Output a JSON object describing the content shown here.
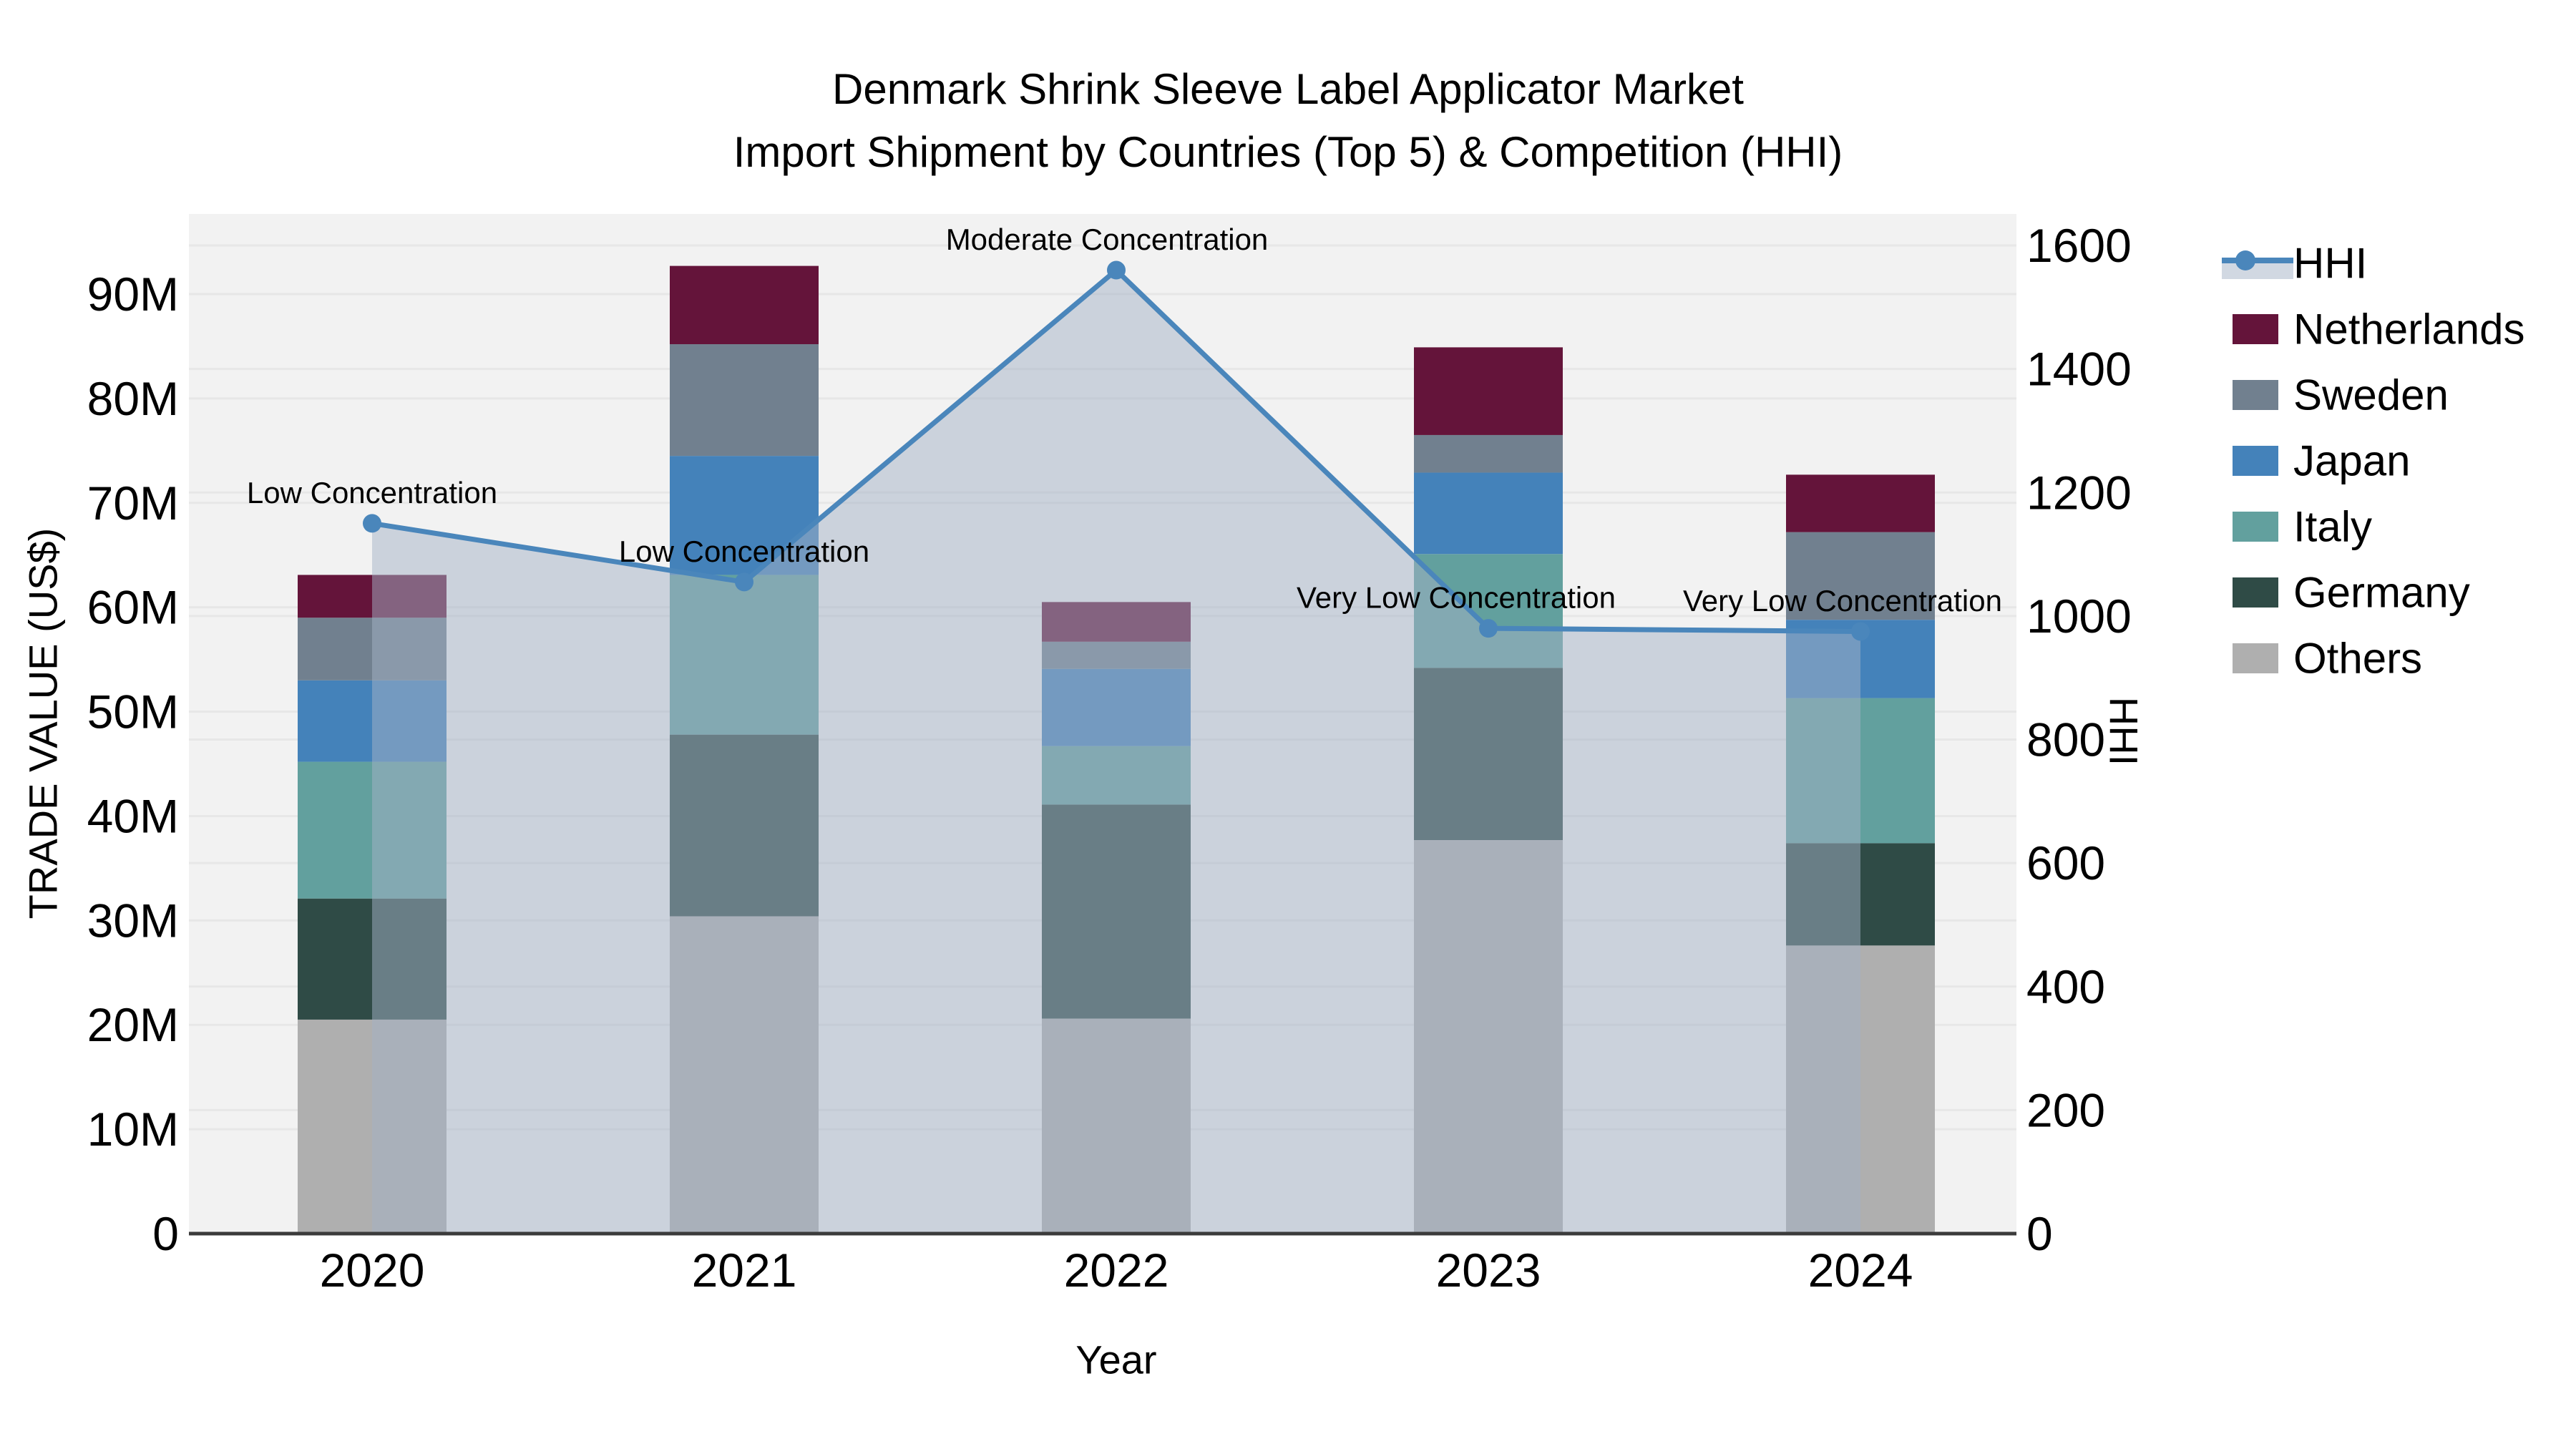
{
  "page": {
    "background": "#ffffff",
    "plot_background": "#f2f2f2"
  },
  "chart_data": {
    "type": "bar",
    "subtype": "stacked-bar-with-line-overlay",
    "title": [
      "Denmark Shrink Sleeve Label Applicator Market",
      "Import Shipment by Countries (Top 5) & Competition (HHI)"
    ],
    "xlabel": "Year",
    "ylabel_left": "TRADE VALUE (US$)",
    "ylabel_right": "HHI",
    "categories": [
      "2020",
      "2021",
      "2022",
      "2023",
      "2024"
    ],
    "unit": "million US$",
    "series": [
      {
        "name": "Netherlands",
        "color": "#64143A",
        "values": [
          4.1,
          7.5,
          3.8,
          8.4,
          5.5
        ]
      },
      {
        "name": "Sweden",
        "color": "#71808F",
        "values": [
          6.0,
          10.7,
          2.6,
          3.6,
          8.4
        ]
      },
      {
        "name": "Japan",
        "color": "#4482BA",
        "values": [
          7.8,
          11.4,
          7.4,
          7.8,
          7.5
        ]
      },
      {
        "name": "Italy",
        "color": "#62A09E",
        "values": [
          13.1,
          15.3,
          5.6,
          10.9,
          13.9
        ]
      },
      {
        "name": "Germany",
        "color": "#2F4B46",
        "values": [
          11.6,
          17.4,
          20.5,
          16.5,
          9.8
        ]
      },
      {
        "name": "Others",
        "color": "#AFAFAF",
        "values": [
          20.5,
          30.4,
          20.6,
          37.7,
          27.6
        ]
      }
    ],
    "bar_totals": [
      63.1,
      92.7,
      60.5,
      84.9,
      72.7
    ],
    "hhi_line": {
      "name": "HHI",
      "color": "#4A86BB",
      "area_fill": "rgba(163,178,198,0.5)",
      "values": [
        1150,
        1055,
        1560,
        980,
        975
      ]
    },
    "annotations": [
      {
        "year": "2020",
        "text": "Low Concentration"
      },
      {
        "year": "2021",
        "text": "Low Concentration"
      },
      {
        "year": "2022",
        "text": "Moderate Concentration"
      },
      {
        "year": "2023",
        "text": "Very Low Concentration"
      },
      {
        "year": "2024",
        "text": "Very Low Concentration"
      }
    ],
    "y_left_ticks": [
      "0",
      "10M",
      "20M",
      "30M",
      "40M",
      "50M",
      "60M",
      "70M",
      "80M",
      "90M"
    ],
    "y_left_range": [
      0,
      90
    ],
    "y_right_ticks": [
      "0",
      "200",
      "400",
      "600",
      "800",
      "1000",
      "1200",
      "1400",
      "1600"
    ],
    "y_right_range": [
      0,
      1600
    ],
    "grid": true,
    "legend": {
      "position": "right",
      "entries": [
        "HHI",
        "Netherlands",
        "Sweden",
        "Japan",
        "Italy",
        "Germany",
        "Others"
      ]
    }
  }
}
